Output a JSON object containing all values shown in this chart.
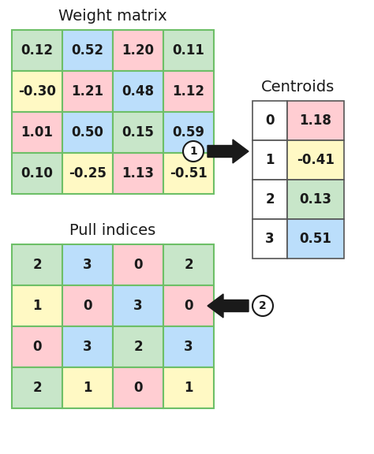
{
  "weight_matrix": {
    "values": [
      [
        "0.12",
        "0.52",
        "1.20",
        "0.11"
      ],
      [
        "-0.30",
        "1.21",
        "0.48",
        "1.12"
      ],
      [
        "1.01",
        "0.50",
        "0.15",
        "0.59"
      ],
      [
        "0.10",
        "-0.25",
        "1.13",
        "-0.51"
      ]
    ],
    "colors": [
      [
        "#c8e6c9",
        "#bbdefb",
        "#ffcdd2",
        "#c8e6c9"
      ],
      [
        "#fff9c4",
        "#ffcdd2",
        "#bbdefb",
        "#ffcdd2"
      ],
      [
        "#ffcdd2",
        "#bbdefb",
        "#c8e6c9",
        "#bbdefb"
      ],
      [
        "#c8e6c9",
        "#fff9c4",
        "#ffcdd2",
        "#fff9c4"
      ]
    ],
    "title": "Weight matrix"
  },
  "centroids": {
    "indices": [
      "0",
      "1",
      "2",
      "3"
    ],
    "values": [
      "1.18",
      "-0.41",
      "0.13",
      "0.51"
    ],
    "value_colors": [
      "#ffcdd2",
      "#fff9c4",
      "#c8e6c9",
      "#bbdefb"
    ],
    "title": "Centroids"
  },
  "pull_indices": {
    "values": [
      [
        "2",
        "3",
        "0",
        "2"
      ],
      [
        "1",
        "0",
        "3",
        "0"
      ],
      [
        "0",
        "3",
        "2",
        "3"
      ],
      [
        "2",
        "1",
        "0",
        "1"
      ]
    ],
    "colors": [
      [
        "#c8e6c9",
        "#bbdefb",
        "#ffcdd2",
        "#c8e6c9"
      ],
      [
        "#fff9c4",
        "#ffcdd2",
        "#bbdefb",
        "#ffcdd2"
      ],
      [
        "#ffcdd2",
        "#bbdefb",
        "#c8e6c9",
        "#bbdefb"
      ],
      [
        "#c8e6c9",
        "#fff9c4",
        "#ffcdd2",
        "#fff9c4"
      ]
    ],
    "title": "Pull indices"
  },
  "font_size": 12,
  "title_font_size": 14
}
